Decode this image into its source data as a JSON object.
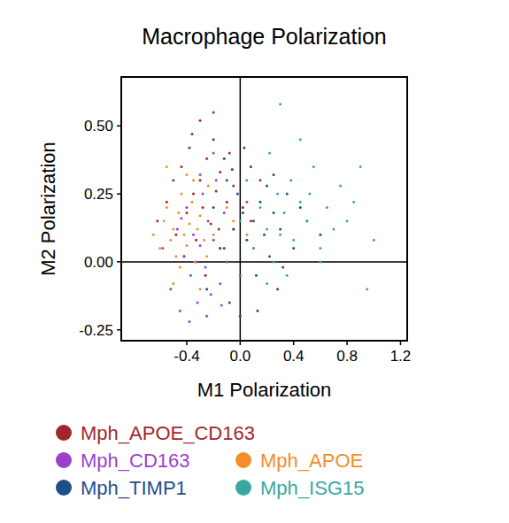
{
  "chart_data": {
    "type": "scatter",
    "title": "Macrophage Polarization",
    "x_label": "M1 Polarization",
    "y_label": "M2 Polarization",
    "xlim": [
      -0.89,
      1.25
    ],
    "ylim": [
      -0.29,
      0.68
    ],
    "xticks": [
      -0.4,
      {
        "value": 0,
        "label": "0.0"
      },
      0.4,
      0.8,
      1.2
    ],
    "yticks": [
      -0.25,
      {
        "value": 0,
        "label": "0.00"
      },
      0.25,
      {
        "value": 0.5,
        "label": "0.50"
      }
    ],
    "legend": "bottom",
    "marker": "circle",
    "series": [
      {
        "name": "Mph_APOE_CD163",
        "color": "#a3262b",
        "x": [
          -0.62,
          -0.55,
          -0.5,
          -0.48,
          -0.44,
          -0.4,
          -0.38,
          -0.35,
          -0.33,
          -0.3,
          -0.28,
          -0.25,
          -0.22,
          -0.2,
          -0.18,
          -0.15,
          -0.12,
          -0.1,
          -0.08,
          -0.05,
          -0.3,
          -0.42,
          -0.26,
          -0.16,
          -0.06,
          0.02,
          0.08,
          0.15,
          -0.36,
          -0.2
        ],
        "values": [
          0.15,
          0.22,
          0.3,
          0.1,
          0.35,
          0.18,
          0.42,
          0.25,
          0.08,
          0.3,
          0.2,
          0.38,
          0.14,
          0.45,
          0.26,
          0.33,
          0.05,
          0.22,
          0.4,
          0.28,
          0.52,
          0.02,
          -0.05,
          0.12,
          0.34,
          0.2,
          0.15,
          0.3,
          0.47,
          0.55
        ]
      },
      {
        "name": "Mph_CD163",
        "color": "#9b3fd0",
        "x": [
          -0.58,
          -0.52,
          -0.47,
          -0.45,
          -0.42,
          -0.4,
          -0.37,
          -0.35,
          -0.32,
          -0.3,
          -0.28,
          -0.26,
          -0.24,
          -0.22,
          -0.2,
          -0.18,
          -0.15,
          -0.12,
          -0.1,
          -0.05,
          -0.38,
          -0.3,
          -0.25,
          0.0,
          0.05,
          -0.44,
          -0.33,
          -0.14,
          0.1,
          -0.2
        ],
        "values": [
          0.05,
          -0.1,
          0.12,
          -0.18,
          0.02,
          0.2,
          -0.05,
          0.1,
          -0.15,
          0.06,
          0.25,
          -0.02,
          0.15,
          -0.12,
          0.08,
          0.3,
          -0.08,
          0.18,
          0.0,
          0.12,
          -0.22,
          0.32,
          -0.2,
          -0.05,
          0.22,
          0.16,
          0.0,
          -0.16,
          0.05,
          0.4
        ]
      },
      {
        "name": "Mph_APOE",
        "color": "#f28e2b",
        "x": [
          -0.65,
          -0.6,
          -0.57,
          -0.55,
          -0.52,
          -0.5,
          -0.48,
          -0.46,
          -0.44,
          -0.42,
          -0.4,
          -0.38,
          -0.36,
          -0.34,
          -0.32,
          -0.3,
          -0.27,
          -0.24,
          -0.2,
          -0.15,
          -0.1,
          -0.05,
          -0.45,
          -0.35,
          -0.25,
          -0.55,
          -0.5,
          -0.4,
          -0.3,
          0.05
        ],
        "values": [
          0.1,
          0.05,
          0.15,
          0.2,
          0.08,
          0.12,
          0.02,
          0.18,
          0.25,
          0.1,
          0.06,
          0.14,
          0.22,
          0.0,
          0.12,
          0.17,
          0.08,
          0.28,
          0.1,
          0.05,
          0.2,
          0.15,
          -0.02,
          0.3,
          0.02,
          0.35,
          -0.08,
          0.32,
          -0.1,
          0.1
        ]
      },
      {
        "name": "Mph_TIMP1",
        "color": "#1f4e8c",
        "x": [
          -0.25,
          -0.2,
          -0.15,
          -0.1,
          -0.08,
          -0.05,
          -0.02,
          0.0,
          0.02,
          0.05,
          0.08,
          0.1,
          0.12,
          0.15,
          0.18,
          0.2,
          0.22,
          0.25,
          0.28,
          0.3,
          0.35,
          0.4,
          0.45,
          0.5,
          0.6,
          0.03,
          0.13,
          -0.12,
          0.25,
          0.32
        ],
        "values": [
          -0.1,
          0.2,
          0.05,
          0.3,
          -0.15,
          0.12,
          0.25,
          -0.2,
          0.18,
          0.08,
          0.35,
          0.15,
          -0.05,
          0.22,
          0.1,
          0.28,
          0.02,
          0.18,
          -0.1,
          0.12,
          0.25,
          0.05,
          0.2,
          0.15,
          0.1,
          0.42,
          -0.18,
          0.38,
          0.32,
          -0.02
        ]
      },
      {
        "name": "Mph_ISG15",
        "color": "#3aa8a0",
        "x": [
          0.0,
          0.05,
          0.1,
          0.15,
          0.2,
          0.22,
          0.25,
          0.28,
          0.3,
          0.33,
          0.35,
          0.38,
          0.4,
          0.45,
          0.5,
          0.55,
          0.6,
          0.65,
          0.7,
          0.75,
          0.8,
          0.85,
          0.9,
          0.95,
          1.0,
          0.3,
          0.45,
          0.6,
          0.2,
          0.52
        ],
        "values": [
          0.15,
          0.3,
          0.05,
          0.2,
          0.12,
          0.4,
          0.0,
          0.25,
          0.1,
          0.18,
          -0.05,
          0.3,
          0.08,
          0.22,
          0.15,
          0.35,
          0.05,
          0.2,
          0.12,
          0.28,
          0.15,
          0.22,
          0.35,
          -0.1,
          0.08,
          0.58,
          0.45,
          0.0,
          -0.08,
          0.25
        ]
      }
    ]
  }
}
